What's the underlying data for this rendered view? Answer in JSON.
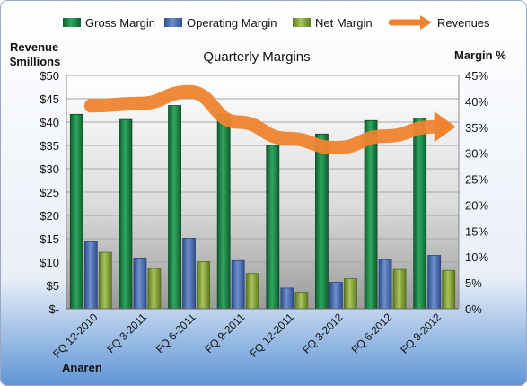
{
  "chart_data": {
    "type": "bar",
    "title": "Quarterly Margins",
    "left_axis_label_line1": "Revenue",
    "left_axis_label_line2": "$millions",
    "right_axis_label": "Margin %",
    "company": "Anaren",
    "categories": [
      "FQ 12-2010",
      "FQ 3-2011",
      "FQ 6-2011",
      "FQ 9-2011",
      "FQ 12-2011",
      "FQ 3-2012",
      "FQ 6-2012",
      "FQ 9-2012"
    ],
    "left_axis": {
      "min": 0,
      "max": 50,
      "step": 5,
      "ticks": [
        "$-",
        "$5",
        "$10",
        "$15",
        "$20",
        "$25",
        "$30",
        "$35",
        "$40",
        "$45",
        "$50"
      ]
    },
    "right_axis": {
      "min": 0,
      "max": 45,
      "step": 5,
      "ticks": [
        "0%",
        "5%",
        "10%",
        "15%",
        "20%",
        "25%",
        "30%",
        "35%",
        "40%",
        "45%"
      ]
    },
    "series": [
      {
        "name": "Gross Margin",
        "axis": "right",
        "color": "#1e8a4a",
        "values": [
          37.5,
          36.5,
          39.2,
          37.5,
          31.5,
          33.7,
          36.3,
          36.8
        ]
      },
      {
        "name": "Operating Margin",
        "axis": "right",
        "color": "#4f6fb0",
        "values": [
          12.9,
          9.8,
          13.6,
          9.3,
          4.0,
          5.1,
          9.5,
          10.3
        ]
      },
      {
        "name": "Net Margin",
        "axis": "right",
        "color": "#8fae3f",
        "values": [
          10.9,
          7.8,
          9.1,
          6.8,
          3.2,
          5.8,
          7.6,
          7.4
        ]
      }
    ],
    "line_series": {
      "name": "Revenues",
      "axis": "left",
      "color": "#ee8430",
      "values": [
        43.5,
        44,
        46.5,
        40,
        36.5,
        34.5,
        37,
        39
      ]
    },
    "legend_position": "top",
    "grid": true
  }
}
